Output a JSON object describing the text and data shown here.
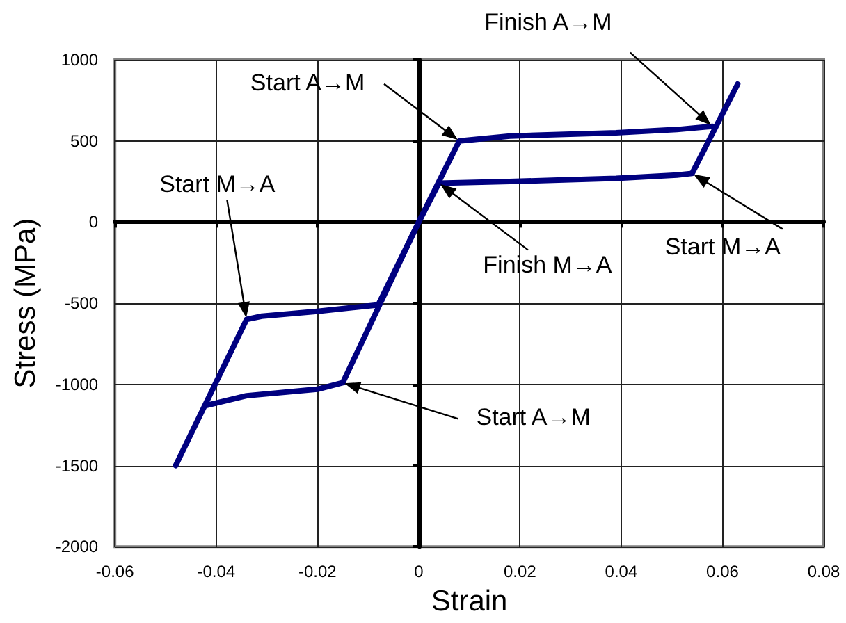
{
  "chart_data": {
    "type": "line",
    "xlabel": "Strain",
    "ylabel": "Stress (MPa)",
    "series": [
      {
        "color": "#000080",
        "x": [
          -0.042,
          -0.034,
          -0.02,
          -0.015,
          0,
          0.008,
          0.018,
          0.039,
          0.051,
          0.058
        ],
        "values": [
          -1130,
          -1070,
          -1030,
          -990,
          0,
          500,
          530,
          550,
          570,
          590
        ]
      },
      {
        "color": "#000080",
        "x": [
          0.063,
          0.054,
          0.051,
          0.039,
          0.018,
          0.004,
          0,
          -0.008,
          -0.02,
          -0.031,
          -0.034,
          -0.048
        ],
        "values": [
          850,
          300,
          290,
          270,
          250,
          240,
          0,
          -510,
          -550,
          -580,
          -600,
          -1500
        ]
      }
    ],
    "xlim": [
      -0.06,
      0.08
    ],
    "ylim": [
      -2000,
      1000
    ],
    "xticks": [
      -0.06,
      -0.04,
      -0.02,
      0,
      0.02,
      0.04,
      0.06,
      0.08
    ],
    "yticks": [
      -2000,
      -1500,
      -1000,
      -500,
      0,
      500,
      1000
    ],
    "grid": true,
    "marker": "none",
    "line_style": "solid",
    "annotations": [
      {
        "text": "Finish A→M",
        "x": 0.058,
        "y": 590
      },
      {
        "text": "Start A→M",
        "x": 0.008,
        "y": 500
      },
      {
        "text": "Start M→A",
        "x": -0.034,
        "y": -600
      },
      {
        "text": "Start M→A",
        "x": 0.054,
        "y": 300
      },
      {
        "text": "Finish M→A",
        "x": 0.004,
        "y": 240
      },
      {
        "text": "Start A→M",
        "x": -0.015,
        "y": -990
      }
    ]
  }
}
